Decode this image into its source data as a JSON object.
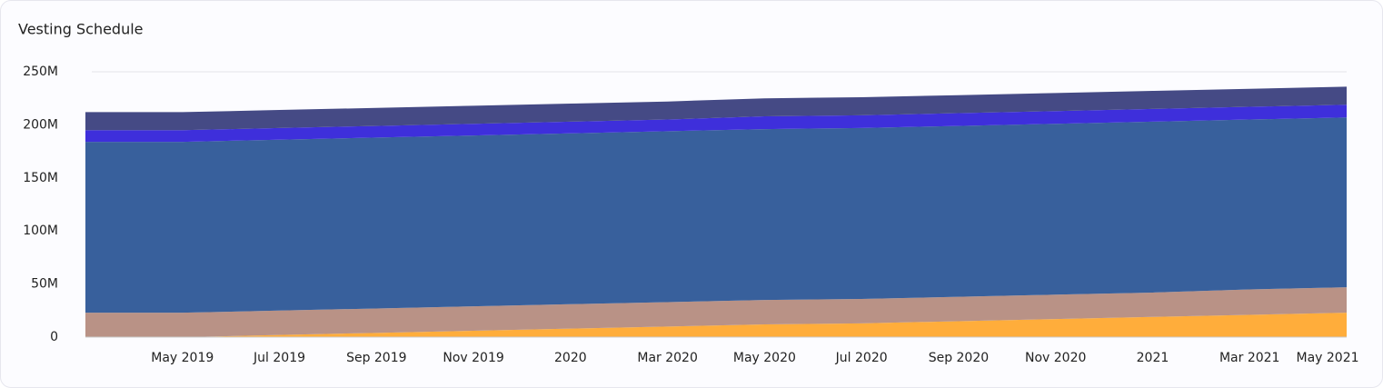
{
  "chart_data": {
    "type": "stacked-area",
    "title": "Vesting Schedule",
    "x": [
      "2019-03",
      "2019-05",
      "2019-07",
      "2019-09",
      "2019-11",
      "2020-01",
      "2020-03",
      "2020-05",
      "2020-07",
      "2020-09",
      "2020-11",
      "2021-01",
      "2021-03",
      "2021-05"
    ],
    "series": [
      {
        "color": "#ffad3b",
        "values": [
          0,
          0,
          2000000,
          4000000,
          6000000,
          8000000,
          10000000,
          12000000,
          13000000,
          15000000,
          17000000,
          19000000,
          21000000,
          23000000
        ]
      },
      {
        "color": "#b99286",
        "values": [
          23000000,
          23000000,
          23000000,
          23000000,
          23000000,
          23000000,
          23000000,
          23000000,
          23000000,
          23000000,
          23000000,
          23000000,
          24000000,
          24000000
        ]
      },
      {
        "color": "#38609c",
        "values": [
          161000000,
          161000000,
          161000000,
          161000000,
          161000000,
          161000000,
          161000000,
          161000000,
          161000000,
          161000000,
          161000000,
          161000000,
          160000000,
          160000000
        ]
      },
      {
        "color": "#3e2fdb",
        "values": [
          11000000,
          11000000,
          11000000,
          11000000,
          11000000,
          11000000,
          11000000,
          12000000,
          12000000,
          12000000,
          12000000,
          12000000,
          12000000,
          12000000
        ]
      },
      {
        "color": "#454a85",
        "values": [
          17000000,
          17000000,
          17000000,
          17000000,
          17000000,
          17000000,
          17000000,
          17000000,
          17000000,
          17000000,
          17000000,
          17000000,
          17000000,
          17000000
        ]
      }
    ],
    "xticks": [
      {
        "value": "2019-05",
        "label": "May 2019"
      },
      {
        "value": "2019-07",
        "label": "Jul 2019"
      },
      {
        "value": "2019-09",
        "label": "Sep 2019"
      },
      {
        "value": "2019-11",
        "label": "Nov 2019"
      },
      {
        "value": "2020-01",
        "label": "2020"
      },
      {
        "value": "2020-03",
        "label": "Mar 2020"
      },
      {
        "value": "2020-05",
        "label": "May 2020"
      },
      {
        "value": "2020-07",
        "label": "Jul 2020"
      },
      {
        "value": "2020-09",
        "label": "Sep 2020"
      },
      {
        "value": "2020-11",
        "label": "Nov 2020"
      },
      {
        "value": "2021-01",
        "label": "2021"
      },
      {
        "value": "2021-03",
        "label": "Mar 2021"
      },
      {
        "value": "2021-05",
        "label": "May 2021"
      }
    ],
    "ylim": [
      0,
      250000000
    ],
    "yticks": [
      0,
      {
        "value": 50000000,
        "label": "50M"
      },
      {
        "value": 100000000,
        "label": "100M"
      },
      {
        "value": 150000000,
        "label": "150M"
      },
      {
        "value": 200000000,
        "label": "200M"
      },
      {
        "value": 250000000,
        "label": "250M"
      }
    ],
    "grid": true
  }
}
